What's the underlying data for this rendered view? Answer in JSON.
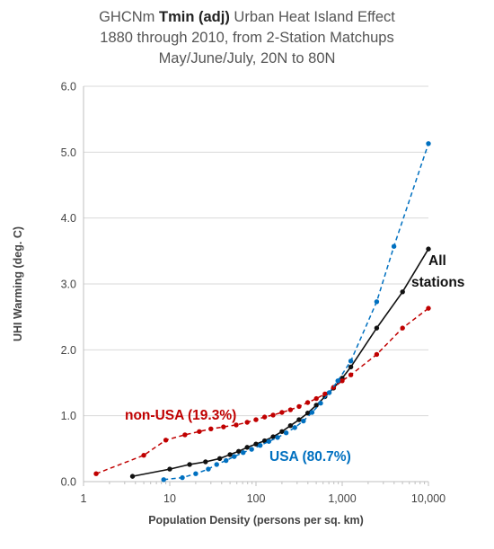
{
  "chart_data": {
    "type": "line",
    "title": {
      "line1_pre": "GHCNm ",
      "line1_bold": "Tmin (adj)",
      "line1_post": " Urban Heat Island Effect",
      "line2": "1880 through 2010, from 2-Station Matchups",
      "line3": "May/June/July, 20N to 80N"
    },
    "xlabel": "Population Density (persons per sq. km)",
    "ylabel": "UHI Warming (deg. C)",
    "x_scale": "log",
    "xlim": [
      1,
      10000
    ],
    "ylim": [
      0,
      6
    ],
    "x_ticks": [
      1,
      10,
      100,
      1000,
      10000
    ],
    "x_tick_labels": [
      "1",
      "10",
      "100",
      "1,000",
      "10,000"
    ],
    "y_ticks": [
      0,
      1,
      2,
      3,
      4,
      5,
      6
    ],
    "y_tick_labels": [
      "0.0",
      "1.0",
      "2.0",
      "3.0",
      "4.0",
      "5.0",
      "6.0"
    ],
    "grid": "horizontal",
    "series": [
      {
        "name": "All stations",
        "color": "#111111",
        "style": "solid",
        "x": [
          3.7,
          10,
          17,
          26,
          38,
          50,
          63,
          79,
          100,
          126,
          158,
          200,
          251,
          316,
          398,
          501,
          631,
          794,
          1000,
          1259,
          2512,
          5012,
          10000
        ],
        "y": [
          0.08,
          0.19,
          0.26,
          0.3,
          0.35,
          0.41,
          0.46,
          0.52,
          0.57,
          0.62,
          0.68,
          0.76,
          0.85,
          0.94,
          1.04,
          1.16,
          1.29,
          1.42,
          1.57,
          1.74,
          2.33,
          2.88,
          3.53
        ]
      },
      {
        "name": "non-USA (19.3%)",
        "color": "#c00000",
        "style": "dashed",
        "x": [
          1.4,
          5,
          9,
          15,
          22,
          30,
          42,
          59,
          79,
          100,
          126,
          158,
          200,
          251,
          316,
          398,
          501,
          631,
          794,
          1000,
          1259,
          2512,
          5012,
          10000
        ],
        "y": [
          0.12,
          0.4,
          0.63,
          0.71,
          0.76,
          0.8,
          0.83,
          0.86,
          0.9,
          0.94,
          0.98,
          1.01,
          1.05,
          1.09,
          1.14,
          1.2,
          1.26,
          1.33,
          1.43,
          1.53,
          1.62,
          1.93,
          2.33,
          2.63
        ]
      },
      {
        "name": "USA (80.7%)",
        "color": "#0070c0",
        "style": "dashed",
        "x": [
          8.5,
          14,
          20,
          28,
          35,
          45,
          56,
          71,
          89,
          112,
          141,
          178,
          224,
          282,
          355,
          447,
          562,
          708,
          891,
          1259,
          2512,
          3981,
          10000
        ],
        "y": [
          0.03,
          0.06,
          0.12,
          0.19,
          0.26,
          0.32,
          0.38,
          0.44,
          0.49,
          0.55,
          0.61,
          0.67,
          0.74,
          0.82,
          0.92,
          1.05,
          1.19,
          1.35,
          1.53,
          1.83,
          2.73,
          3.57,
          5.13
        ]
      }
    ],
    "annotations": {
      "all_line1": "All",
      "all_line2": "stations",
      "nonusa": "non-USA (19.3%)",
      "usa": "USA (80.7%)"
    }
  }
}
